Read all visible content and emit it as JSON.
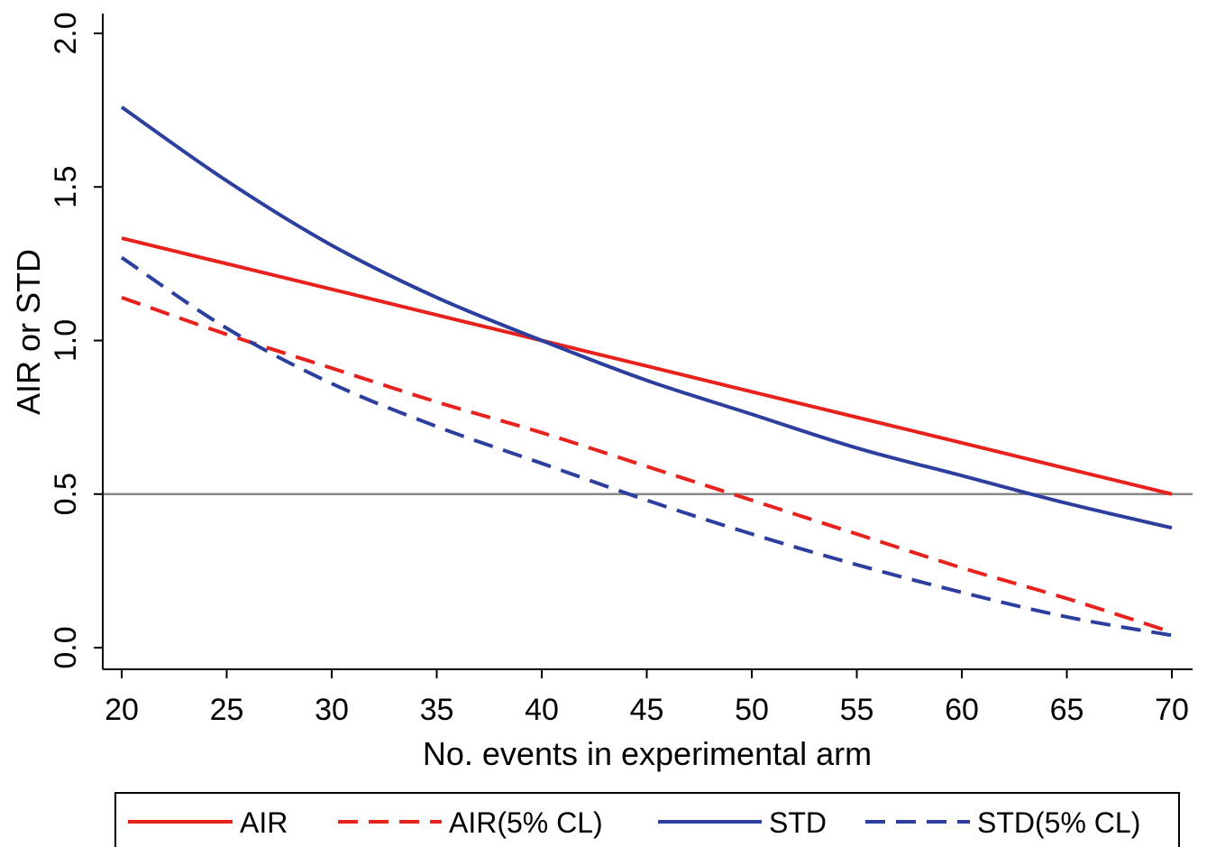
{
  "chart_data": {
    "type": "line",
    "title": "",
    "xlabel": "No. events in experimental arm",
    "ylabel": "AIR or STD",
    "xlim": [
      20,
      70
    ],
    "ylim": [
      0,
      2
    ],
    "xticks": [
      20,
      25,
      30,
      35,
      40,
      45,
      50,
      55,
      60,
      65,
      70
    ],
    "xtick_labels": [
      "20",
      "25",
      "30",
      "35",
      "40",
      "45",
      "50",
      "55",
      "60",
      "65",
      "70"
    ],
    "yticks": [
      0,
      0.5,
      1,
      1.5,
      2
    ],
    "ytick_labels": [
      "0.0",
      "0.5",
      "1.0",
      "1.5",
      "2.0"
    ],
    "reference_line": {
      "y": 0.5,
      "color": "#888888"
    },
    "grid": false,
    "legend_position": "bottom",
    "x": [
      20,
      25,
      30,
      35,
      40,
      45,
      50,
      55,
      60,
      65,
      70
    ],
    "series": [
      {
        "name": "AIR",
        "color": "#e8211c",
        "style": "solid",
        "values": [
          1.333,
          1.25,
          1.167,
          1.083,
          1.0,
          0.917,
          0.833,
          0.75,
          0.667,
          0.583,
          0.5
        ]
      },
      {
        "name": "AIR(5% CL)",
        "color": "#e8211c",
        "style": "dashed",
        "values": [
          1.14,
          1.02,
          0.91,
          0.8,
          0.7,
          0.59,
          0.48,
          0.37,
          0.26,
          0.16,
          0.05
        ]
      },
      {
        "name": "STD",
        "color": "#2c3f9e",
        "style": "solid",
        "values": [
          1.76,
          1.52,
          1.31,
          1.14,
          1.0,
          0.87,
          0.76,
          0.65,
          0.56,
          0.47,
          0.39
        ]
      },
      {
        "name": "STD(5% CL)",
        "color": "#2c3f9e",
        "style": "dashed",
        "values": [
          1.27,
          1.04,
          0.86,
          0.72,
          0.6,
          0.48,
          0.37,
          0.27,
          0.18,
          0.1,
          0.04
        ]
      }
    ]
  }
}
